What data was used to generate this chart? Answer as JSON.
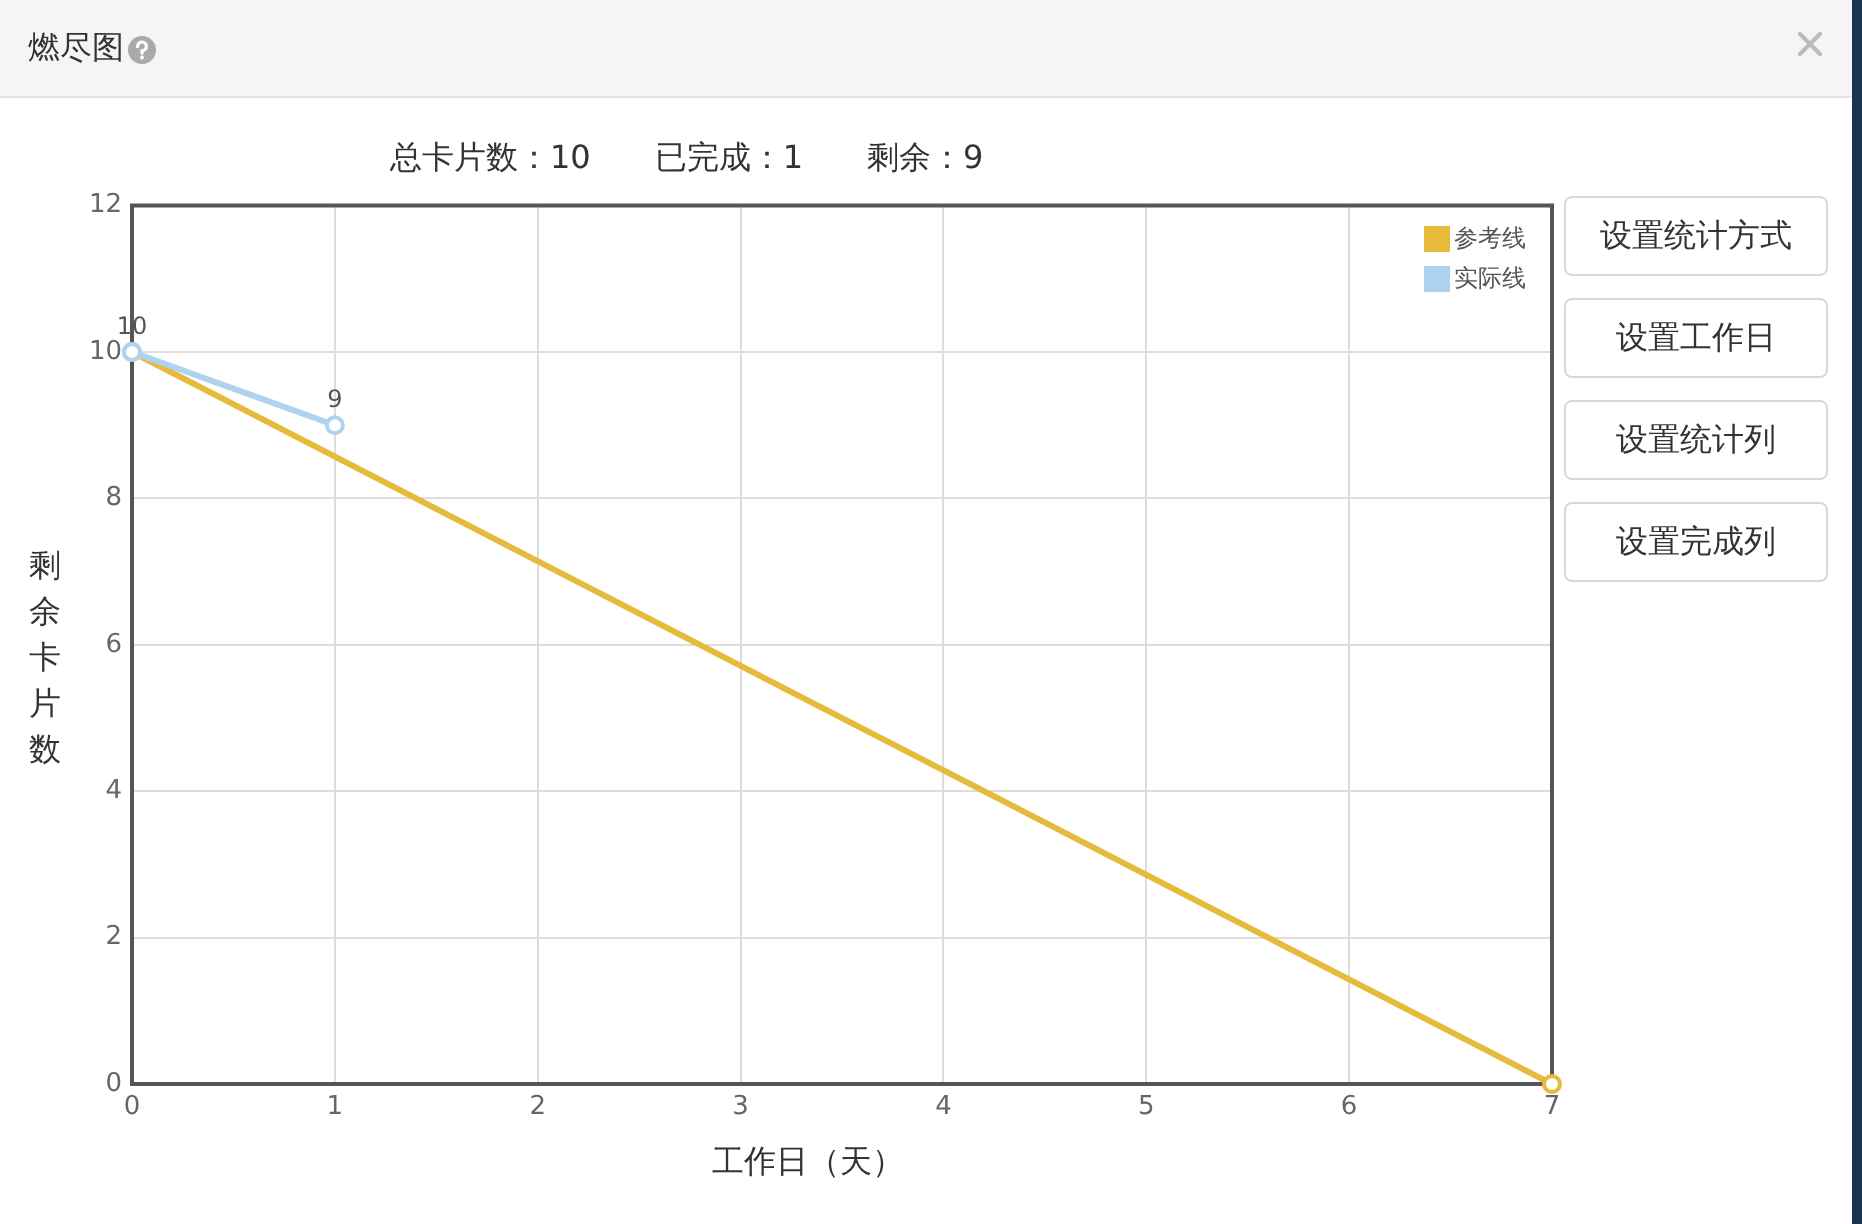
{
  "chart_data": {
    "type": "line",
    "title": "燃尽图",
    "subtitle": "总卡片数：10　　已完成：1　　剩余：9",
    "xlabel": "工作日（天）",
    "ylabel": "剩余卡片数",
    "series": [
      {
        "name": "参考线",
        "color": "#e6bb3c",
        "x": [
          0,
          7
        ],
        "values": [
          10,
          0
        ]
      },
      {
        "name": "实际线",
        "color": "#aed3ee",
        "x": [
          0,
          1
        ],
        "values": [
          10,
          9
        ],
        "value_labels": [
          "10",
          "9"
        ]
      }
    ],
    "xlim": [
      0,
      7
    ],
    "xticks": [
      0,
      1,
      2,
      3,
      4,
      5,
      6,
      7
    ],
    "ylim": [
      0,
      12
    ],
    "yticks": [
      0,
      2,
      4,
      6,
      8,
      10,
      12
    ],
    "grid": true,
    "legend": "top right",
    "marker": "circle",
    "line_style": "solid",
    "annotations": [
      "设置统计方式",
      "设置工作日",
      "设置统计列",
      "设置完成列"
    ]
  }
}
